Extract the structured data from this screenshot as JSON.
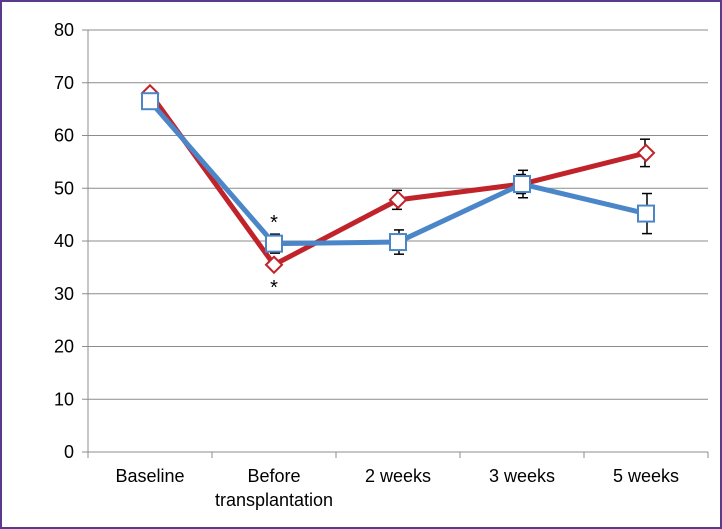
{
  "chart_data": {
    "type": "line",
    "categories": [
      "Baseline",
      "Before\ntransplantation",
      "2 weeks",
      "3 weeks",
      "5 weeks"
    ],
    "ylim": [
      0,
      80
    ],
    "yticks": [
      0,
      10,
      20,
      30,
      40,
      50,
      60,
      70,
      80
    ],
    "grid": true,
    "legend": "none",
    "series": [
      {
        "color": "#c0232a",
        "marker": "diamond",
        "values": [
          68,
          35.5,
          47.8,
          50.8,
          56.7
        ],
        "errors": [
          null,
          null,
          1.8,
          1.8,
          2.6
        ]
      },
      {
        "color": "#4a86c8",
        "marker": "square",
        "values": [
          66.5,
          39.5,
          39.8,
          50.8,
          45.2
        ],
        "errors": [
          null,
          1.8,
          2.3,
          2.6,
          3.8
        ]
      }
    ],
    "annotations": [
      {
        "text": "*",
        "category": 1,
        "value": 43.8
      },
      {
        "text": "*",
        "category": 1,
        "value": 31.5
      }
    ]
  }
}
